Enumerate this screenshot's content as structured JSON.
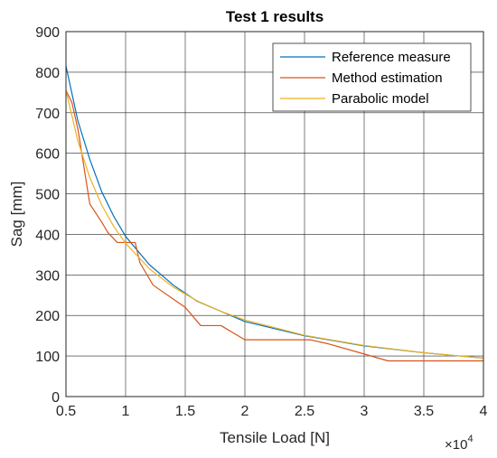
{
  "chart_data": {
    "type": "line",
    "title": "Test 1 results",
    "xlabel": "Tensile Load [N]",
    "ylabel": "Sag [mm]",
    "x_exponent_label": "×10",
    "x_exponent_power": "4",
    "xlim": [
      0.5,
      4
    ],
    "ylim": [
      0,
      900
    ],
    "x_ticks": [
      "0.5",
      "1",
      "1.5",
      "2",
      "2.5",
      "3",
      "3.5",
      "4"
    ],
    "y_ticks": [
      "0",
      "100",
      "200",
      "300",
      "400",
      "500",
      "600",
      "700",
      "800",
      "900"
    ],
    "grid": true,
    "legend_position": "top-right",
    "series": [
      {
        "name": "Reference measure",
        "color": "#0072BD",
        "x": [
          0.5,
          0.6,
          0.7,
          0.8,
          0.9,
          1.0,
          1.2,
          1.4,
          1.6,
          1.8,
          2.0,
          2.5,
          3.0,
          3.5,
          4.0
        ],
        "y": [
          815,
          680,
          585,
          505,
          445,
          395,
          325,
          275,
          235,
          210,
          185,
          150,
          125,
          108,
          95
        ]
      },
      {
        "name": "Method estimation",
        "color": "#D95319",
        "x": [
          0.5,
          0.55,
          0.6,
          0.7,
          0.8,
          0.85,
          0.93,
          1.0,
          1.08,
          1.12,
          1.23,
          1.5,
          1.63,
          1.8,
          2.0,
          2.5,
          2.55,
          2.7,
          3.0,
          3.2,
          3.5,
          4.0
        ],
        "y": [
          755,
          725,
          660,
          475,
          430,
          405,
          380,
          380,
          380,
          330,
          275,
          220,
          175,
          175,
          140,
          140,
          140,
          130,
          105,
          88,
          88,
          88
        ]
      },
      {
        "name": "Parabolic model",
        "color": "#EDB120",
        "x": [
          0.5,
          0.6,
          0.7,
          0.8,
          0.9,
          1.0,
          1.2,
          1.4,
          1.6,
          1.8,
          2.0,
          2.5,
          3.0,
          3.5,
          4.0
        ],
        "y": [
          755,
          630,
          540,
          472,
          420,
          378,
          315,
          270,
          236,
          210,
          189,
          151,
          126,
          108,
          95
        ]
      }
    ]
  }
}
